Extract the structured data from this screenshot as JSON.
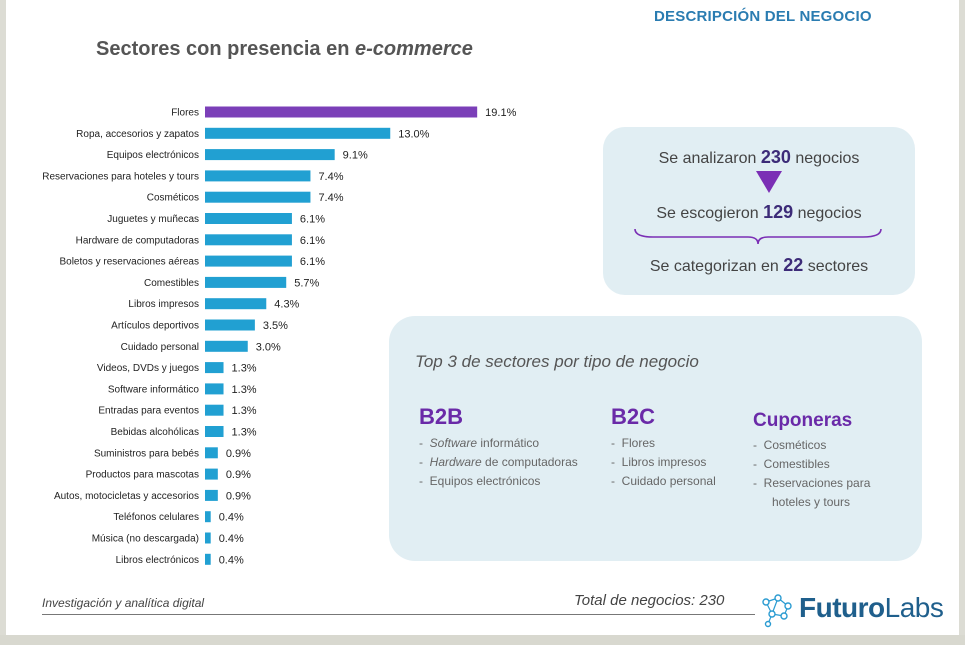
{
  "header": {
    "title": "DESCRIPCIÓN DEL NEGOCIO"
  },
  "chart_title": {
    "main": "Sectores con presencia en ",
    "emphasis": "e-commerce"
  },
  "colors": {
    "highlight": "#7b3fb8",
    "bar": "#21a0d2",
    "accent_text": "#3c2b78",
    "heading_purple": "#6a2aa8"
  },
  "chart_data": {
    "type": "bar",
    "orientation": "horizontal",
    "title": "Sectores con presencia en e-commerce",
    "categories": [
      "Flores",
      "Ropa, accesorios y zapatos",
      "Equipos electrónicos",
      "Reservaciones para hoteles y tours",
      "Cosméticos",
      "Juguetes y muñecas",
      "Hardware de computadoras",
      "Boletos y reservaciones aéreas",
      "Comestibles",
      "Libros impresos",
      "Artículos deportivos",
      "Cuidado personal",
      "Videos, DVDs y juegos",
      "Software informático",
      "Entradas para eventos",
      "Bebidas alcohólicas",
      "Suministros para bebés",
      "Productos para mascotas",
      "Autos, motocicletas y accesorios",
      "Teléfonos celulares",
      "Música (no descargada)",
      "Libros electrónicos"
    ],
    "values": [
      19.1,
      13.0,
      9.1,
      7.4,
      7.4,
      6.1,
      6.1,
      6.1,
      5.7,
      4.3,
      3.5,
      3.0,
      1.3,
      1.3,
      1.3,
      1.3,
      0.9,
      0.9,
      0.9,
      0.4,
      0.4,
      0.4
    ],
    "value_labels": [
      "19.1%",
      "13.0%",
      "9.1%",
      "7.4%",
      "7.4%",
      "6.1%",
      "6.1%",
      "6.1%",
      "5.7%",
      "4.3%",
      "3.5%",
      "3.0%",
      "1.3%",
      "1.3%",
      "1.3%",
      "1.3%",
      "0.9%",
      "0.9%",
      "0.9%",
      "0.4%",
      "0.4%",
      "0.4%"
    ],
    "highlight_index": 0,
    "xlim": [
      0,
      20
    ],
    "grid": false,
    "legend": "none"
  },
  "summary": {
    "line1_prefix": "Se analizaron ",
    "line1_number": "230",
    "line1_suffix": " negocios",
    "line2_prefix": "Se escogieron ",
    "line2_number": "129",
    "line2_suffix": " negocios",
    "line3_prefix": "Se categorizan en ",
    "line3_number": "22",
    "line3_suffix": " sectores"
  },
  "top3": {
    "title": "Top 3 de sectores por tipo de negocio",
    "b2b": {
      "heading": "B2B",
      "item1_italic": "Software",
      "item1_rest": " informático",
      "item2_italic": "Hardware",
      "item2_rest": " de computadoras",
      "item3": "Equipos electrónicos"
    },
    "b2c": {
      "heading": "B2C",
      "items": [
        "Flores",
        "Libros impresos",
        "Cuidado personal"
      ]
    },
    "cuponeras": {
      "heading": "Cuponeras",
      "items": [
        "Cosméticos",
        "Comestibles",
        "Reservaciones para",
        "hoteles y tours"
      ]
    },
    "dash": "-"
  },
  "footer": {
    "left": "Investigación y analítica digital",
    "total": "Total de negocios: 230",
    "logo_part1": "Futuro",
    "logo_part2": "Labs",
    "logo_icon": "network-nodes-icon"
  }
}
